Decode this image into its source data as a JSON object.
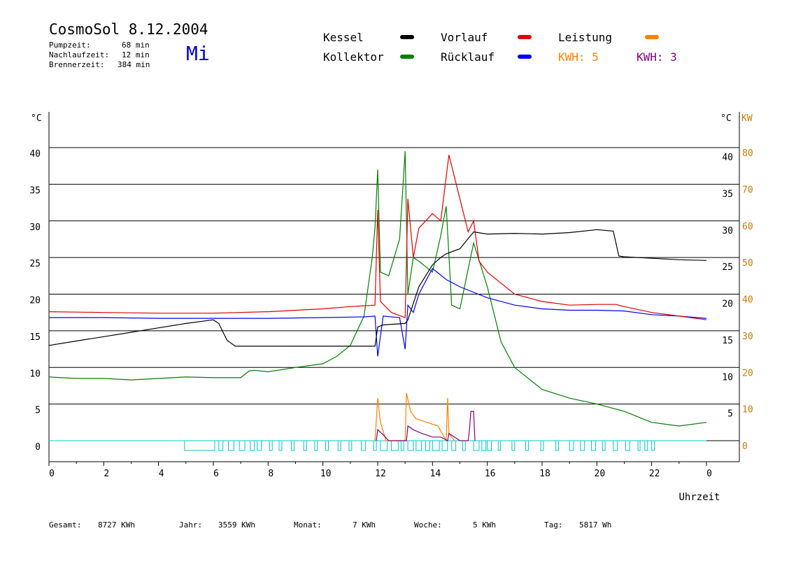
{
  "header": {
    "title": "CosmoSol 8.12.2004",
    "day": "Mi",
    "stats": [
      {
        "label": "Pumpzeit:",
        "value": "68 min"
      },
      {
        "label": "Nachlaufzeit:",
        "value": "12 min"
      },
      {
        "label": "Brennerzeit:",
        "value": "384 min"
      }
    ]
  },
  "legend": {
    "kessel": "Kessel",
    "kollektor": "Kollektor",
    "vorlauf": "Vorlauf",
    "ruecklauf": "Rücklauf",
    "leistung": "Leistung",
    "kwh1": "KWH: 5",
    "kwh2": "KWH: 3"
  },
  "footer": {
    "gesamt_label": "Gesamt:",
    "gesamt_value": "8727 KWh",
    "jahr_label": "Jahr:",
    "jahr_value": "3559 KWh",
    "monat_label": "Monat:",
    "monat_value": "7 KWh",
    "woche_label": "Woche:",
    "woche_value": "5 KWh",
    "tag_label": "Tag:",
    "tag_value": "5817 Wh"
  },
  "chart_data": {
    "type": "line",
    "xlabel": "Uhrzeit",
    "y_left_unit": "°C",
    "y_right_unit": "°C",
    "y_right2_unit": "KW",
    "x_ticks": [
      "0",
      "2",
      "4",
      "6",
      "8",
      "10",
      "12",
      "14",
      "16",
      "18",
      "20",
      "22",
      "0"
    ],
    "y_left_ticks": [
      "0",
      "5",
      "10",
      "15",
      "20",
      "25",
      "30",
      "35",
      "40"
    ],
    "y_right_ticks": [
      "5",
      "10",
      "15",
      "20",
      "25",
      "30",
      "35",
      "40"
    ],
    "y_right2_ticks": [
      "0",
      "10",
      "20",
      "30",
      "40",
      "50",
      "60",
      "70",
      "80"
    ],
    "xlim": [
      0,
      24
    ],
    "ylim": [
      0,
      40
    ],
    "colors": {
      "kessel": "#000000",
      "kollektor": "#008000",
      "vorlauf": "#e00000",
      "ruecklauf": "#0000ff",
      "leistung": "#ff8000",
      "kwh1": "#ff8000",
      "kwh2": "#800080",
      "pump": "#00c8c8"
    },
    "series": [
      {
        "name": "Kessel",
        "color_key": "kessel",
        "x": [
          0,
          1,
          2,
          3,
          4,
          5,
          6,
          6.2,
          6.5,
          6.8,
          7,
          8,
          9,
          10,
          11,
          11.9,
          12,
          12.2,
          13,
          13.1,
          13.5,
          14,
          14.3,
          14.5,
          15,
          15.5,
          16,
          17,
          18,
          19,
          20,
          20.6,
          20.8,
          21,
          22,
          23,
          24
        ],
        "y": [
          13,
          13.6,
          14.2,
          14.8,
          15.4,
          16,
          16.5,
          16,
          13.7,
          12.9,
          12.9,
          12.9,
          12.9,
          12.9,
          12.9,
          12.9,
          15.5,
          15.8,
          16,
          16.5,
          21,
          24,
          25,
          25.5,
          26.2,
          28.5,
          28.2,
          28.3,
          28.2,
          28.4,
          28.8,
          28.6,
          25.2,
          25.1,
          24.9,
          24.7,
          24.6
        ]
      },
      {
        "name": "Kollektor",
        "color_key": "kollektor",
        "x": [
          0,
          1,
          2,
          3,
          4,
          5,
          6,
          7,
          7.3,
          7.5,
          8,
          9,
          10,
          10.5,
          11,
          11.5,
          11.8,
          11.9,
          12,
          12.1,
          12.4,
          12.8,
          13,
          13.1,
          13.3,
          13.5,
          14,
          14.3,
          14.5,
          14.7,
          15,
          15.5,
          16,
          16.5,
          17,
          18,
          19,
          20,
          21,
          22,
          23,
          24
        ],
        "y": [
          8.7,
          8.5,
          8.5,
          8.3,
          8.5,
          8.7,
          8.6,
          8.6,
          9.5,
          9.6,
          9.4,
          10,
          10.5,
          11.5,
          13,
          17,
          25,
          29,
          37,
          23,
          22.5,
          27.5,
          39.5,
          20,
          25,
          24.5,
          23,
          28,
          32,
          18.5,
          18,
          27,
          21,
          13.5,
          10,
          7,
          5.8,
          5,
          4,
          2.5,
          2,
          2.5
        ]
      },
      {
        "name": "Vorlauf",
        "color_key": "vorlauf",
        "x": [
          0,
          2,
          4,
          6,
          8,
          10,
          11,
          11.9,
          12,
          12.1,
          12.5,
          13,
          13.1,
          13.3,
          13.5,
          14,
          14.3,
          14.5,
          14.6,
          15,
          15.3,
          15.5,
          15.7,
          16,
          17,
          18,
          19,
          20,
          20.7,
          21,
          22,
          23,
          24
        ],
        "y": [
          17.6,
          17.5,
          17.4,
          17.4,
          17.6,
          18,
          18.3,
          18.5,
          31.5,
          19,
          17.5,
          16.8,
          33,
          25,
          29,
          31,
          30,
          36,
          39,
          33,
          28.5,
          30,
          24.5,
          23,
          20,
          19,
          18.5,
          18.6,
          18.6,
          18.3,
          17.5,
          17,
          16.5
        ]
      },
      {
        "name": "Rücklauf",
        "color_key": "ruecklauf",
        "x": [
          0,
          2,
          4,
          6,
          8,
          10,
          11.5,
          11.9,
          12,
          12.2,
          12.8,
          13,
          13.1,
          13.3,
          13.5,
          14,
          14.5,
          15,
          16,
          17,
          18,
          19,
          20,
          21,
          22,
          23,
          24
        ],
        "y": [
          16.8,
          16.8,
          16.7,
          16.7,
          16.7,
          16.8,
          16.9,
          17,
          11.5,
          17,
          16.8,
          12.5,
          18.5,
          17.5,
          20,
          23.5,
          22,
          21,
          19.5,
          18.5,
          18,
          17.8,
          17.8,
          17.7,
          17.2,
          17,
          16.7
        ]
      }
    ],
    "power_series": [
      {
        "name": "Leistung",
        "color_key": "leistung",
        "x": [
          11.9,
          12,
          12.1,
          12.3,
          13,
          13.05,
          13.2,
          13.4,
          13.8,
          14.2,
          14.5,
          14.55,
          14.6,
          14.8
        ],
        "y": [
          0,
          5.8,
          2.5,
          0,
          0,
          6.5,
          4,
          3,
          2.5,
          2,
          0,
          5.8,
          1,
          0
        ]
      },
      {
        "name": "KWH: 3",
        "color_key": "kwh2",
        "x": [
          11.95,
          12,
          12.2,
          12.4,
          13.05,
          13.1,
          13.3,
          13.6,
          14,
          14.3,
          14.55,
          14.6,
          14.8,
          15,
          15.3,
          15.35,
          15.4,
          15.5,
          15.55
        ],
        "y": [
          0,
          1.5,
          0.8,
          0,
          0,
          2,
          1.5,
          1,
          0.5,
          0.5,
          0,
          1,
          0.5,
          0,
          0,
          1.5,
          4,
          4,
          0
        ]
      }
    ],
    "pump_blocks": [
      [
        4.95,
        6.05
      ],
      [
        6.2,
        6.35
      ],
      [
        6.55,
        6.75
      ],
      [
        6.95,
        7.15
      ],
      [
        7.35,
        7.5
      ],
      [
        7.6,
        7.75
      ],
      [
        8.05,
        8.15
      ],
      [
        8.4,
        8.5
      ],
      [
        8.85,
        8.95
      ],
      [
        9.3,
        9.4
      ],
      [
        9.7,
        9.8
      ],
      [
        10.1,
        10.2
      ],
      [
        10.55,
        10.65
      ],
      [
        10.95,
        11.05
      ],
      [
        11.4,
        11.55
      ],
      [
        11.85,
        11.95
      ],
      [
        12.1,
        12.35
      ],
      [
        12.5,
        12.75
      ],
      [
        12.85,
        12.95
      ],
      [
        13.1,
        13.3
      ],
      [
        13.4,
        13.6
      ],
      [
        13.75,
        13.9
      ],
      [
        14.0,
        14.25
      ],
      [
        14.35,
        14.55
      ],
      [
        14.7,
        14.85
      ],
      [
        15.1,
        15.2
      ],
      [
        15.5,
        15.7
      ],
      [
        15.8,
        15.95
      ],
      [
        16.0,
        16.15
      ],
      [
        16.4,
        16.45
      ],
      [
        16.9,
        17.0
      ],
      [
        17.4,
        17.5
      ],
      [
        17.95,
        18.05
      ],
      [
        18.5,
        18.6
      ],
      [
        19.0,
        19.15
      ],
      [
        19.4,
        19.55
      ],
      [
        19.8,
        19.95
      ],
      [
        20.2,
        20.3
      ],
      [
        20.6,
        20.75
      ],
      [
        21.05,
        21.2
      ],
      [
        21.5,
        21.55
      ],
      [
        21.75,
        21.85
      ],
      [
        22.0,
        22.1
      ]
    ]
  }
}
